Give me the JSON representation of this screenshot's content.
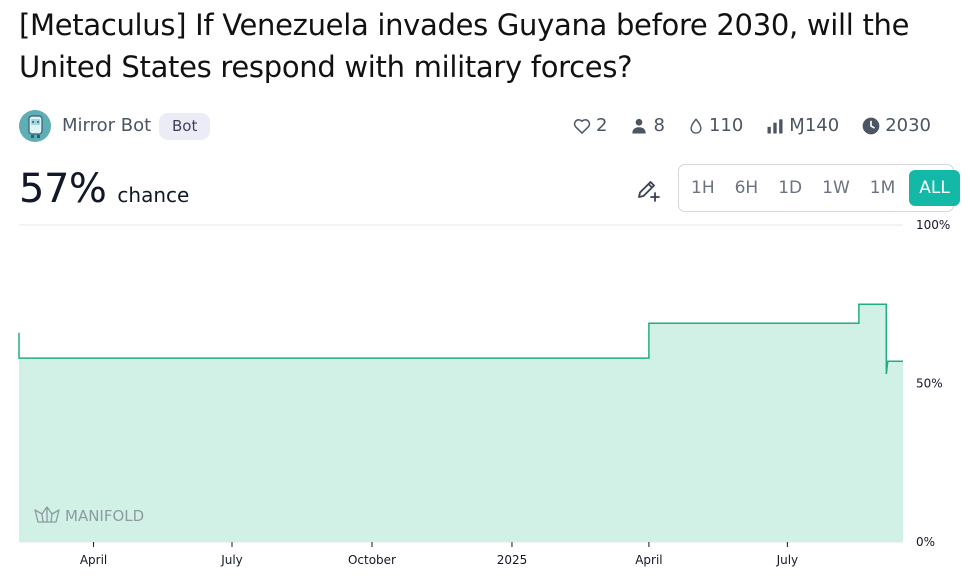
{
  "question": {
    "title": "[Metaculus] If Venezuela invades Guyana before 2030, will the United States respond with military forces?"
  },
  "author": {
    "name": "Mirror Bot",
    "badge": "Bot",
    "avatar_icon": "bot-avatar-icon"
  },
  "stats": {
    "likes": "2",
    "traders": "8",
    "liquidity": "110",
    "volume": "Ɱ140",
    "close": "2030"
  },
  "probability": {
    "value": "57%",
    "label": "chance"
  },
  "time_ranges": [
    {
      "label": "1H",
      "active": false
    },
    {
      "label": "6H",
      "active": false
    },
    {
      "label": "1D",
      "active": false
    },
    {
      "label": "1W",
      "active": false
    },
    {
      "label": "1M",
      "active": false
    },
    {
      "label": "ALL",
      "active": true
    }
  ],
  "watermark": "MANIFOLD",
  "colors": {
    "accent": "#14b8a6",
    "line": "#21ad84",
    "fill": "#d2f1e6",
    "text": "#111827",
    "muted": "#4b5563"
  },
  "chart_data": {
    "type": "area",
    "series": [
      {
        "points": [
          [
            "2024-02-12",
            66
          ],
          [
            "2024-02-12",
            58
          ],
          [
            "2025-04-01",
            58
          ],
          [
            "2025-04-01",
            69
          ],
          [
            "2025-08-17",
            69
          ],
          [
            "2025-08-17",
            75
          ],
          [
            "2025-09-04",
            75
          ],
          [
            "2025-09-04",
            53
          ],
          [
            "2025-09-05",
            57
          ],
          [
            "2025-09-15",
            57
          ]
        ]
      }
    ],
    "x_ticks": [
      {
        "date": "2024-04-01",
        "label": "April"
      },
      {
        "date": "2024-07-01",
        "label": "July"
      },
      {
        "date": "2024-10-01",
        "label": "October"
      },
      {
        "date": "2025-01-01",
        "label": "2025"
      },
      {
        "date": "2025-04-01",
        "label": "April"
      },
      {
        "date": "2025-07-01",
        "label": "July"
      }
    ],
    "y_ticks": [
      {
        "value": 0,
        "label": "0%"
      },
      {
        "value": 50,
        "label": "50%"
      },
      {
        "value": 100,
        "label": "100%"
      }
    ],
    "xlim": [
      "2024-02-12",
      "2025-09-15"
    ],
    "ylim": [
      0,
      100
    ],
    "grid": "horizontal"
  }
}
